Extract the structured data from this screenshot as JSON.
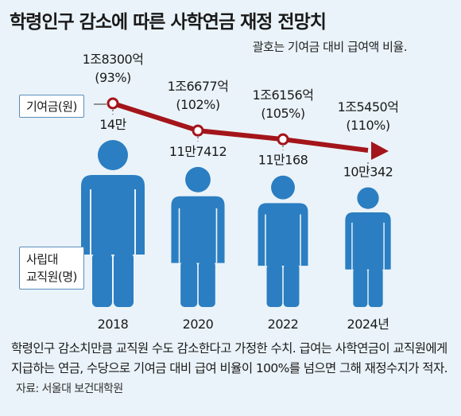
{
  "title": "학령인구 감소에 따른 사학연금 재정 전망치",
  "note": "괄호는 기여금 대비 급여액 비율.",
  "contribution_tag": "기여금(원)",
  "staff_tag_line1": "사립대",
  "staff_tag_line2": "교직원(명)",
  "footer_text": "학령인구 감소치만큼 교직원 수도 감소한다고 가정한 수치. 급여는 사학연금이 교직원에게 지급하는 연금, 수당으로 기여금 대비 급여 비율이 100%를 넘으면 그해 재정수지가 적자.",
  "source": "자료: 서울대 보건대학원",
  "colors": {
    "line": "#a3151a",
    "figure": "#2b7ec1",
    "background": "#eaf3f9"
  },
  "chart_data": {
    "type": "line",
    "categories": [
      "2018",
      "2020",
      "2022",
      "2024년"
    ],
    "series": [
      {
        "name": "기여금(원)",
        "values": [
          1830000000000,
          1667700000000,
          1615600000000,
          1545000000000
        ],
        "labels": [
          "1조8300억",
          "1조6677억",
          "1조6156억",
          "1조5450억"
        ],
        "ratios": [
          "(93%)",
          "(102%)",
          "(105%)",
          "(110%)"
        ]
      },
      {
        "name": "사립대 교직원(명)",
        "values": [
          140000,
          117412,
          110168,
          100342
        ],
        "labels": [
          "14만",
          "11만7412",
          "11만168",
          "10만342"
        ]
      }
    ]
  }
}
